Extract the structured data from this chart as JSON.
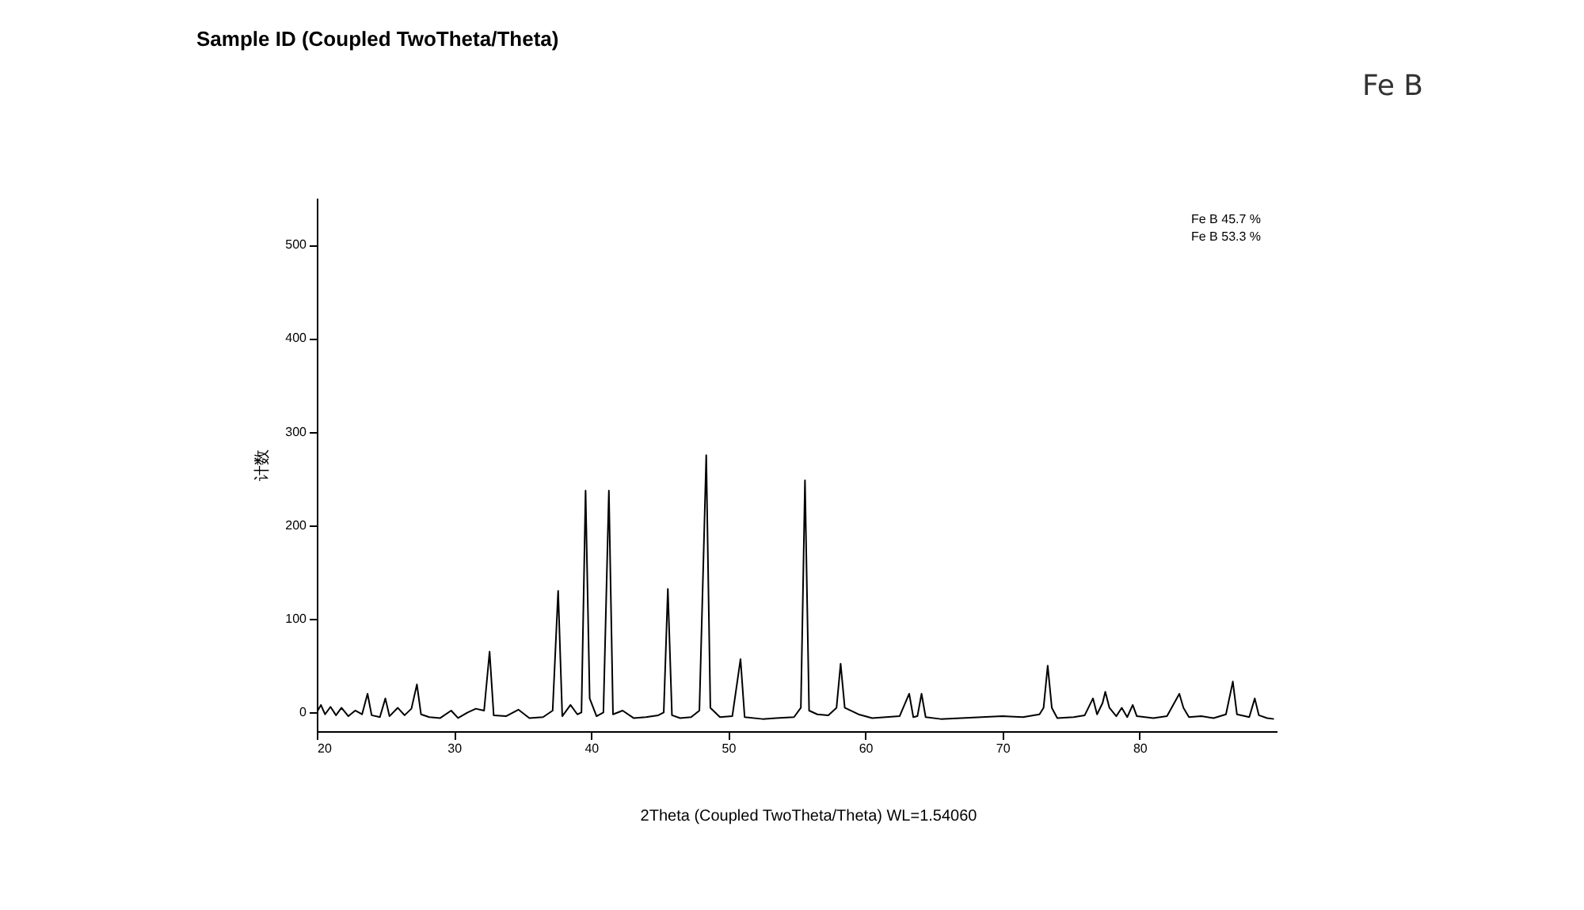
{
  "chart_data": {
    "type": "line",
    "title": "Sample ID (Coupled TwoTheta/Theta)",
    "xlabel": "2Theta (Coupled TwoTheta/Theta) WL=1.54060",
    "ylabel": "计数",
    "annotations": [
      "Fe B 45.7 %",
      "Fe B 53.3 %",
      "Fe B"
    ],
    "xlim": [
      20,
      90
    ],
    "xticks": [
      20,
      30,
      40,
      50,
      60,
      70,
      80
    ],
    "ylim": [
      -20,
      550
    ],
    "yticks": [
      0,
      100,
      200,
      300,
      400,
      500
    ],
    "grid": false,
    "series": [
      {
        "color": "#000000",
        "x": [
          20,
          20.3,
          20.6,
          21,
          21.4,
          21.8,
          22.3,
          22.8,
          23.3,
          23.7,
          24.0,
          24.6,
          25.0,
          25.3,
          25.9,
          26.4,
          26.9,
          27.3,
          27.6,
          28.2,
          29.0,
          29.8,
          30.3,
          31.0,
          31.6,
          32.2,
          32.6,
          32.9,
          33.8,
          34.7,
          35.5,
          36.5,
          37.2,
          37.6,
          37.9,
          38.5,
          39.0,
          39.3,
          39.6,
          39.9,
          40.4,
          40.9,
          41.3,
          41.6,
          42.3,
          43.1,
          44.0,
          44.9,
          45.3,
          45.6,
          45.9,
          46.5,
          47.3,
          47.9,
          48.4,
          48.7,
          49.4,
          50.3,
          50.9,
          51.2,
          52.5,
          53.5,
          54.8,
          55.3,
          55.6,
          55.9,
          56.5,
          57.3,
          57.9,
          58.2,
          58.5,
          59.5,
          60.5,
          61.5,
          62.5,
          63.2,
          63.5,
          63.8,
          64.1,
          64.4,
          65.5,
          67.0,
          68.5,
          70.0,
          71.5,
          72.7,
          73.0,
          73.3,
          73.6,
          74.0,
          75.2,
          76.0,
          76.6,
          76.9,
          77.3,
          77.5,
          77.8,
          78.3,
          78.7,
          79.1,
          79.5,
          79.8,
          81.0,
          82.0,
          82.9,
          83.2,
          83.6,
          84.5,
          85.4,
          86.3,
          86.8,
          87.1,
          88.0,
          88.4,
          88.7,
          89.3,
          89.8
        ],
        "values": [
          0,
          8,
          -2,
          6,
          -3,
          5,
          -4,
          2,
          -2,
          20,
          -3,
          -5,
          15,
          -4,
          5,
          -3,
          4,
          30,
          -2,
          -5,
          -6,
          2,
          -6,
          0,
          4,
          2,
          65,
          -3,
          -4,
          3,
          -6,
          -5,
          2,
          130,
          -4,
          8,
          -2,
          0,
          237,
          15,
          -4,
          0,
          237,
          -2,
          2,
          -6,
          -5,
          -3,
          0,
          132,
          -3,
          -6,
          -5,
          2,
          275,
          5,
          -5,
          -4,
          57,
          -5,
          -7,
          -6,
          -5,
          5,
          248,
          2,
          -2,
          -3,
          5,
          52,
          5,
          -2,
          -6,
          -5,
          -4,
          20,
          -5,
          -4,
          20,
          -5,
          -7,
          -6,
          -5,
          -4,
          -5,
          -2,
          5,
          50,
          5,
          -6,
          -5,
          -3,
          15,
          -2,
          10,
          22,
          5,
          -4,
          5,
          -5,
          8,
          -4,
          -6,
          -4,
          20,
          5,
          -5,
          -4,
          -6,
          -2,
          33,
          -2,
          -5,
          15,
          -3,
          -6,
          -7
        ]
      }
    ]
  }
}
